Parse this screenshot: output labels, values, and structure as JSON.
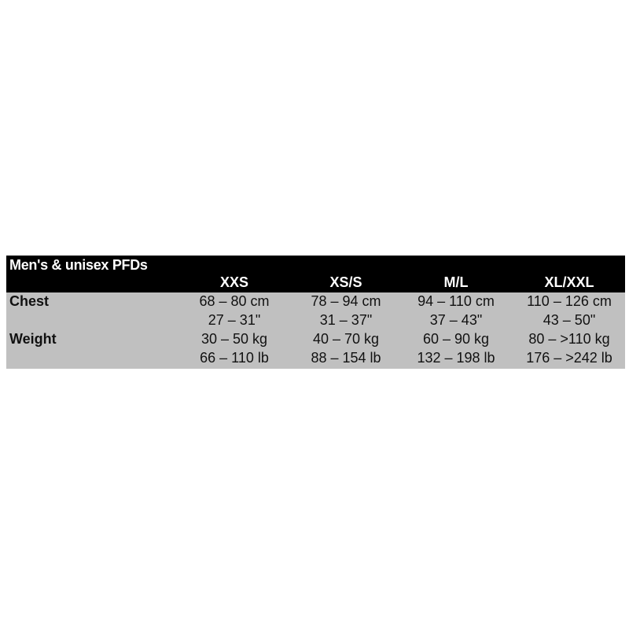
{
  "table": {
    "title": "Men's & unisex PFDs",
    "sizes": [
      "XXS",
      "XS/S",
      "M/L",
      "XL/XXL"
    ],
    "rows": [
      {
        "label": "Chest",
        "values": [
          "68 – 80 cm",
          "78 – 94 cm",
          "94 – 110 cm",
          "110 – 126 cm"
        ]
      },
      {
        "label": "",
        "values": [
          "27 – 31\"",
          "31 – 37\"",
          "37 – 43\"",
          "43 – 50\""
        ]
      },
      {
        "label": "Weight",
        "values": [
          "30 – 50 kg",
          "40 – 70 kg",
          "60 – 90 kg",
          "80 – >110 kg"
        ]
      },
      {
        "label": "",
        "values": [
          "66 – 110 lb",
          "88 – 154 lb",
          "132 – 198 lb",
          "176 – >242 lb"
        ]
      }
    ],
    "colors": {
      "header_bg": "#000000",
      "body_bg": "#c0c0c0"
    }
  }
}
